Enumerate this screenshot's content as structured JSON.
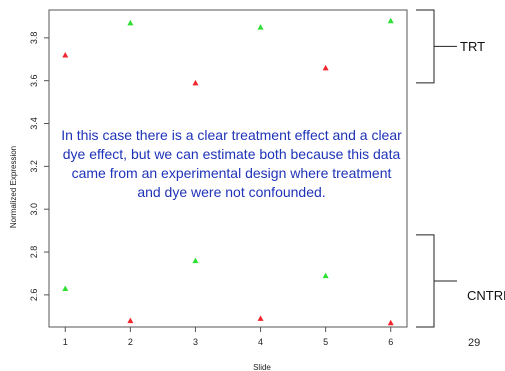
{
  "chart_data": {
    "type": "scatter",
    "title": "",
    "xlabel": "Slide",
    "ylabel": "Normalized Expression",
    "xlim": [
      0.75,
      6.25
    ],
    "ylim": [
      2.45,
      3.93
    ],
    "x_ticks": [
      1,
      2,
      3,
      4,
      5,
      6
    ],
    "y_ticks": [
      2.6,
      2.8,
      3.0,
      3.2,
      3.4,
      3.6,
      3.8
    ],
    "y_tick_labels": [
      "2.6",
      "2.8",
      "3.0",
      "3.2",
      "3.4",
      "3.6",
      "3.8"
    ],
    "grid": false,
    "series": [
      {
        "color": "#f0262c",
        "points": [
          {
            "x": 1,
            "y": 3.72
          },
          {
            "x": 2,
            "y": 2.48
          },
          {
            "x": 3,
            "y": 3.59
          },
          {
            "x": 4,
            "y": 2.49
          },
          {
            "x": 5,
            "y": 3.66
          },
          {
            "x": 6,
            "y": 2.47
          }
        ]
      },
      {
        "color": "#2ee032",
        "points": [
          {
            "x": 1,
            "y": 2.63
          },
          {
            "x": 2,
            "y": 3.87
          },
          {
            "x": 3,
            "y": 2.76
          },
          {
            "x": 4,
            "y": 3.85
          },
          {
            "x": 5,
            "y": 2.69
          },
          {
            "x": 6,
            "y": 3.88
          }
        ]
      }
    ],
    "groups": [
      {
        "label": "TRT",
        "range": [
          3.59,
          3.93
        ]
      },
      {
        "label": "CNTRL",
        "range": [
          2.45,
          2.88
        ]
      }
    ],
    "annotation": "In this case there is a clear treatment effect and a clear dye effect, but we can estimate both because this data came from an experimental design where treatment and dye were not confounded."
  },
  "slide_number": "29"
}
